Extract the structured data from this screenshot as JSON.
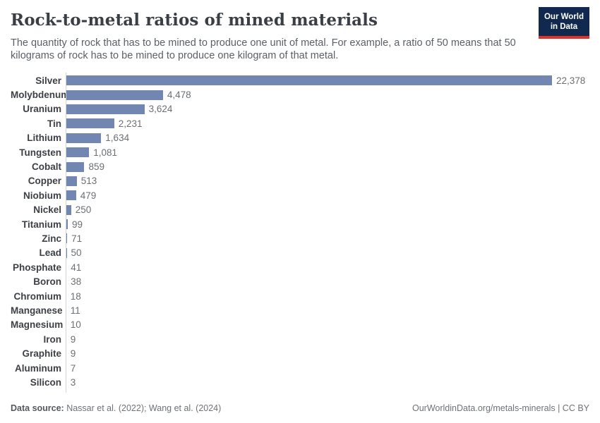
{
  "header": {
    "title": "Rock-to-metal ratios of mined materials",
    "subtitle": "The quantity of rock that has to be mined to produce one unit of metal. For example, a ratio of 50 means that 50 kilograms of rock has to be mined to produce one kilogram of that metal.",
    "logo": {
      "line1": "Our World",
      "line2": "in Data"
    }
  },
  "chart_data": {
    "type": "bar",
    "orientation": "horizontal",
    "title": "Rock-to-metal ratios of mined materials",
    "xlabel": "",
    "ylabel": "",
    "xlim": [
      0,
      22378
    ],
    "grid": false,
    "legend": "none",
    "categories": [
      "Silver",
      "Molybdenum",
      "Uranium",
      "Tin",
      "Lithium",
      "Tungsten",
      "Cobalt",
      "Copper",
      "Niobium",
      "Nickel",
      "Titanium",
      "Zinc",
      "Lead",
      "Phosphate",
      "Boron",
      "Chromium",
      "Manganese",
      "Magnesium",
      "Iron",
      "Graphite",
      "Aluminum",
      "Silicon"
    ],
    "values": [
      22378,
      4478,
      3624,
      2231,
      1634,
      1081,
      859,
      513,
      479,
      250,
      99,
      71,
      50,
      41,
      38,
      18,
      11,
      10,
      9,
      9,
      7,
      3
    ],
    "value_labels": [
      "22,378",
      "4,478",
      "3,624",
      "2,231",
      "1,634",
      "1,081",
      "859",
      "513",
      "479",
      "250",
      "99",
      "71",
      "50",
      "41",
      "38",
      "18",
      "11",
      "10",
      "9",
      "9",
      "7",
      "3"
    ]
  },
  "footer": {
    "source_label": "Data source:",
    "source_text": " Nassar et al. (2022); Wang et al. (2024)",
    "credit": "OurWorldinData.org/metals-minerals | CC BY"
  },
  "colors": {
    "bar": "#7286b2",
    "axis_line": "#d4d4d4",
    "title_text": "#3a3f46",
    "subtitle_text": "#5b6066",
    "value_text": "#6b6f73",
    "logo_background": "#12294f",
    "logo_accent_red": "#dc3428"
  }
}
